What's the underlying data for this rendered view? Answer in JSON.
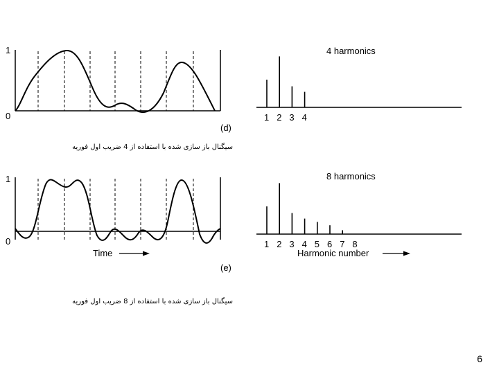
{
  "figure_d": {
    "label": "(d)",
    "y_top": "1",
    "y_bottom": "0",
    "spectrum_title": "4 harmonics",
    "bar_labels": [
      "1",
      "2",
      "3",
      "4"
    ],
    "bar_values": [
      0.5,
      0.92,
      0.38,
      0.28
    ],
    "caption": "سیگنال باز سازی شده با استفاده از 4 ضریب اول فوریه"
  },
  "figure_e": {
    "label": "(e)",
    "y_top": "1",
    "y_bottom": "0",
    "time_label": "Time",
    "spectrum_title": "8 harmonics",
    "bar_labels": [
      "1",
      "2",
      "3",
      "4",
      "5",
      "6",
      "7",
      "8"
    ],
    "bar_values": [
      0.5,
      0.92,
      0.38,
      0.28,
      0.22,
      0.16,
      0.07,
      0
    ],
    "axis_label": "Harmonic number",
    "caption": "سیگنال باز سازی شده با استفاده از 8 ضریب اول فوریه"
  },
  "slide_number": "6"
}
